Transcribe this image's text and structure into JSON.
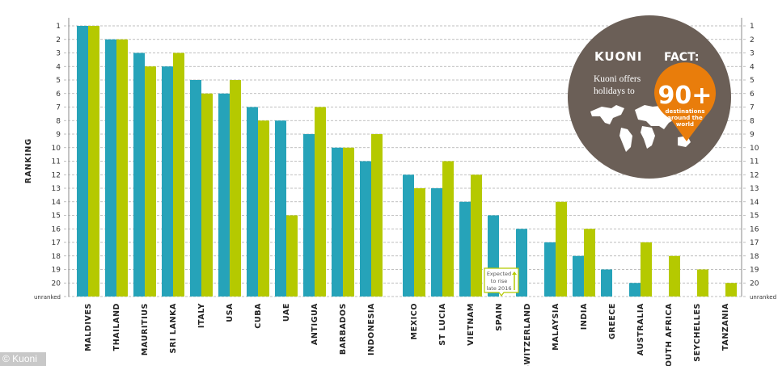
{
  "chart_data": {
    "type": "bar",
    "ylabel": "RANKING",
    "y_ticks": [
      "1",
      "2",
      "3",
      "4",
      "5",
      "6",
      "7",
      "8",
      "9",
      "10",
      "11",
      "12",
      "13",
      "14",
      "15",
      "16",
      "17",
      "18",
      "19",
      "20",
      "unranked"
    ],
    "ylim": [
      1,
      21
    ],
    "y_inverted": true,
    "grid": "horizontal dashed",
    "legend": "none",
    "categories": [
      "MALDIVES",
      "THAILAND",
      "MAURITIUS",
      "SRI LANKA",
      "ITALY",
      "USA",
      "CUBA",
      "UAE",
      "ANTIGUA",
      "BARBADOS",
      "INDONESIA",
      "MEXICO",
      "ST LUCIA",
      "VIETNAM",
      "SPAIN",
      "SWITZERLAND",
      "MALAYSIA",
      "INDIA",
      "GREECE",
      "AUSTRALIA",
      "SOUTH AFRICA",
      "SEYCHELLES",
      "TANZANIA"
    ],
    "series": [
      {
        "color": "#26a3b9",
        "values": [
          1,
          2,
          3,
          4,
          5,
          6,
          7,
          8,
          9,
          10,
          11,
          12,
          13,
          14,
          15,
          16,
          17,
          18,
          19,
          20,
          null,
          null,
          null
        ]
      },
      {
        "color": "#b5c900",
        "values": [
          1,
          2,
          4,
          3,
          6,
          5,
          8,
          15,
          7,
          10,
          9,
          13,
          11,
          12,
          null,
          null,
          14,
          16,
          null,
          17,
          18,
          19,
          20
        ]
      }
    ],
    "annotations": [
      {
        "category": "SPAIN",
        "text_lines": [
          "Expected",
          "to rise",
          "late 2016"
        ],
        "icon": "arrow-up-icon",
        "color": "#b5c900"
      }
    ]
  },
  "fact_badge": {
    "brand": "KUONI",
    "heading": "FACT:",
    "line1": "Kuoni offers",
    "line2": "holidays to",
    "number": "90+",
    "sub1": "destinations",
    "sub2": "around the",
    "sub3": "world",
    "circle_color": "#6b5f57",
    "pin_color": "#e97d0b",
    "icon": "world-map-icon"
  },
  "watermark": "© Kuoni"
}
